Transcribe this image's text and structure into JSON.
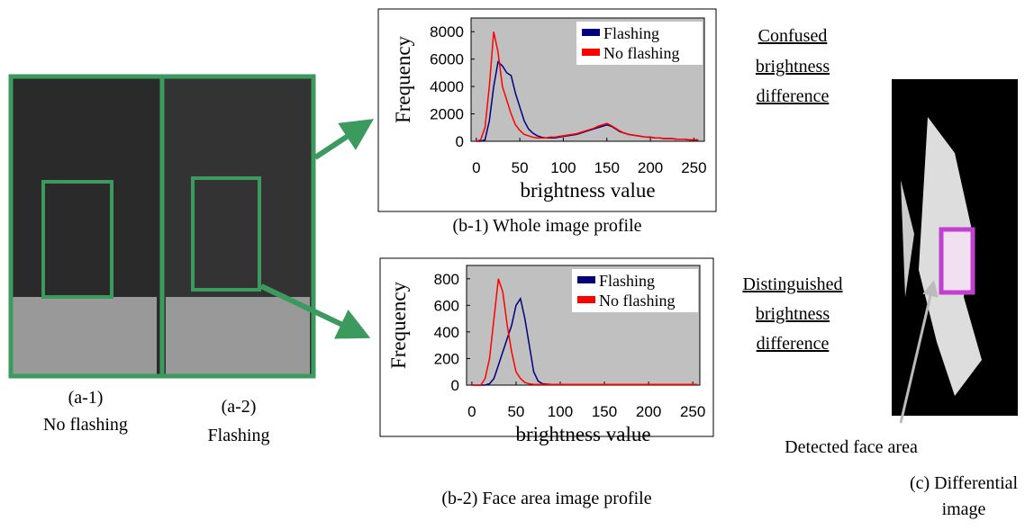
{
  "chart_data": [
    {
      "type": "line",
      "caption": "(b-1) Whole image profile",
      "xlabel": "brightness value",
      "ylabel": "Frequency",
      "x": [
        0,
        5,
        10,
        15,
        20,
        25,
        30,
        35,
        40,
        45,
        50,
        55,
        60,
        65,
        70,
        75,
        80,
        85,
        90,
        95,
        100,
        105,
        110,
        115,
        120,
        125,
        130,
        135,
        140,
        145,
        150,
        155,
        160,
        165,
        170,
        175,
        180,
        185,
        190,
        195,
        200,
        205,
        210,
        215,
        220,
        225,
        230,
        235,
        240,
        245,
        250,
        255
      ],
      "series": [
        {
          "name": "Flashing",
          "color": "#00007f",
          "values": [
            0,
            0,
            100,
            1500,
            4000,
            5800,
            5500,
            5000,
            4800,
            3500,
            2500,
            1500,
            900,
            600,
            400,
            300,
            250,
            250,
            250,
            300,
            350,
            400,
            450,
            500,
            600,
            700,
            800,
            900,
            1000,
            1100,
            1200,
            1100,
            900,
            700,
            600,
            500,
            450,
            400,
            350,
            300,
            300,
            250,
            250,
            200,
            200,
            200,
            150,
            150,
            150,
            100,
            100,
            100
          ]
        },
        {
          "name": "No flashing",
          "color": "#ff0000",
          "values": [
            0,
            100,
            1000,
            4000,
            8000,
            6500,
            4000,
            3000,
            2000,
            1200,
            800,
            500,
            400,
            300,
            250,
            250,
            250,
            300,
            300,
            350,
            400,
            450,
            500,
            550,
            650,
            750,
            850,
            950,
            1100,
            1200,
            1300,
            1150,
            950,
            750,
            600,
            500,
            450,
            400,
            350,
            300,
            300,
            250,
            250,
            200,
            200,
            200,
            150,
            150,
            150,
            100,
            100,
            100
          ]
        }
      ],
      "xlim": [
        -6,
        262
      ],
      "ylim": [
        0,
        9000
      ],
      "xticks": [
        0,
        50,
        100,
        150,
        200,
        250
      ],
      "yticks": [
        0,
        2000,
        4000,
        6000,
        8000
      ],
      "grid": false,
      "legend": "top-right"
    },
    {
      "type": "line",
      "caption": "(b-2) Face area image profile",
      "xlabel": "brightness value",
      "ylabel": "Frequency",
      "x": [
        0,
        5,
        10,
        15,
        20,
        25,
        30,
        35,
        40,
        45,
        50,
        55,
        60,
        65,
        70,
        75,
        80,
        90,
        100,
        120,
        140,
        160,
        180,
        200,
        220,
        240,
        255
      ],
      "series": [
        {
          "name": "Flashing",
          "color": "#00007f",
          "values": [
            0,
            0,
            0,
            0,
            10,
            50,
            150,
            250,
            350,
            450,
            600,
            650,
            500,
            300,
            100,
            30,
            10,
            5,
            5,
            5,
            5,
            5,
            5,
            5,
            5,
            5,
            5
          ]
        },
        {
          "name": "No flashing",
          "color": "#ff0000",
          "values": [
            0,
            0,
            0,
            50,
            200,
            500,
            800,
            700,
            450,
            250,
            100,
            50,
            20,
            10,
            5,
            5,
            5,
            5,
            5,
            5,
            5,
            5,
            5,
            5,
            5,
            5,
            5
          ]
        }
      ],
      "xlim": [
        -6,
        258
      ],
      "ylim": [
        0,
        900
      ],
      "xticks": [
        0,
        50,
        100,
        150,
        200,
        250
      ],
      "yticks": [
        0,
        200,
        400,
        600,
        800
      ],
      "grid": false,
      "legend": "top-right"
    }
  ],
  "photos": {
    "left_label": [
      "(a-1)",
      "No flashing"
    ],
    "right_label": [
      "(a-2)",
      "Flashing"
    ]
  },
  "notes": {
    "confused": [
      "Confused",
      "brightness",
      "difference"
    ],
    "distinguished": [
      "Distinguished",
      "brightness",
      "difference"
    ]
  },
  "differential": {
    "pointer": "Detected face area",
    "caption": [
      "(c) Differential",
      "image"
    ]
  }
}
